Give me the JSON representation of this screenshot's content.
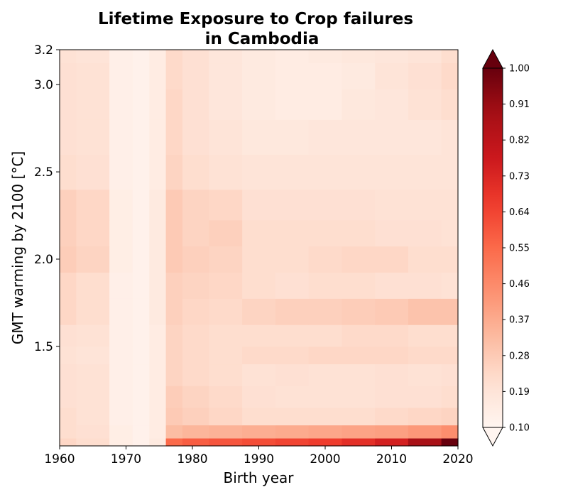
{
  "chart_data": {
    "type": "heatmap",
    "title_line1": "Lifetime Exposure to Crop failures",
    "title_line2": "in Cambodia",
    "xlabel": "Birth year",
    "ylabel": "GMT warming by 2100 [°C]",
    "xlim": [
      1960,
      2020
    ],
    "ylim": [
      0.93,
      3.2
    ],
    "x_ticks": [
      "1960",
      "1970",
      "1980",
      "1990",
      "2000",
      "2010",
      "2020"
    ],
    "y_ticks": [
      "1.5",
      "2.0",
      "2.5",
      "3.0",
      "3.2"
    ],
    "y_tick_values": [
      1.5,
      2.0,
      2.5,
      3.0,
      3.2
    ],
    "colormap": "Reds",
    "colorbar": {
      "min": 0.1,
      "max": 1.0,
      "extend": "both",
      "tick_labels": [
        "0.10",
        "0.19",
        "0.28",
        "0.37",
        "0.46",
        "0.55",
        "0.64",
        "0.73",
        "0.82",
        "0.91",
        "1.00"
      ]
    },
    "x": [
      1960,
      1965,
      1970,
      1972,
      1975,
      1977,
      1980,
      1985,
      1990,
      1995,
      2000,
      2005,
      2010,
      2015,
      2020
    ],
    "y": [
      0.95,
      1.0,
      1.1,
      1.2,
      1.35,
      1.45,
      1.55,
      1.7,
      1.85,
      2.0,
      2.15,
      2.3,
      2.5,
      2.7,
      2.9,
      3.05,
      3.2
    ],
    "z": [
      [
        0.24,
        0.22,
        0.14,
        0.12,
        0.16,
        0.55,
        0.58,
        0.6,
        0.62,
        0.64,
        0.66,
        0.7,
        0.75,
        0.88,
        1.0
      ],
      [
        0.22,
        0.21,
        0.14,
        0.12,
        0.15,
        0.32,
        0.34,
        0.35,
        0.36,
        0.37,
        0.38,
        0.39,
        0.4,
        0.42,
        0.45
      ],
      [
        0.22,
        0.2,
        0.13,
        0.12,
        0.15,
        0.28,
        0.26,
        0.24,
        0.22,
        0.22,
        0.22,
        0.22,
        0.23,
        0.24,
        0.25
      ],
      [
        0.21,
        0.2,
        0.13,
        0.12,
        0.15,
        0.27,
        0.25,
        0.23,
        0.21,
        0.2,
        0.2,
        0.2,
        0.21,
        0.21,
        0.22
      ],
      [
        0.21,
        0.2,
        0.13,
        0.12,
        0.15,
        0.25,
        0.23,
        0.22,
        0.2,
        0.21,
        0.2,
        0.2,
        0.21,
        0.2,
        0.21
      ],
      [
        0.2,
        0.19,
        0.13,
        0.12,
        0.15,
        0.25,
        0.23,
        0.22,
        0.23,
        0.23,
        0.24,
        0.24,
        0.24,
        0.23,
        0.23
      ],
      [
        0.21,
        0.2,
        0.13,
        0.12,
        0.15,
        0.25,
        0.23,
        0.22,
        0.22,
        0.22,
        0.22,
        0.23,
        0.23,
        0.22,
        0.22
      ],
      [
        0.24,
        0.22,
        0.13,
        0.12,
        0.16,
        0.26,
        0.24,
        0.23,
        0.25,
        0.26,
        0.26,
        0.27,
        0.28,
        0.3,
        0.3
      ],
      [
        0.24,
        0.22,
        0.13,
        0.12,
        0.16,
        0.26,
        0.25,
        0.24,
        0.22,
        0.21,
        0.22,
        0.22,
        0.21,
        0.21,
        0.2
      ],
      [
        0.27,
        0.25,
        0.14,
        0.12,
        0.16,
        0.28,
        0.26,
        0.25,
        0.22,
        0.22,
        0.23,
        0.24,
        0.24,
        0.22,
        0.22
      ],
      [
        0.26,
        0.24,
        0.14,
        0.12,
        0.16,
        0.28,
        0.25,
        0.26,
        0.22,
        0.22,
        0.22,
        0.22,
        0.21,
        0.21,
        0.2
      ],
      [
        0.26,
        0.24,
        0.14,
        0.12,
        0.16,
        0.28,
        0.25,
        0.24,
        0.21,
        0.21,
        0.21,
        0.21,
        0.2,
        0.2,
        0.2
      ],
      [
        0.22,
        0.21,
        0.13,
        0.12,
        0.15,
        0.25,
        0.22,
        0.2,
        0.19,
        0.19,
        0.19,
        0.19,
        0.19,
        0.19,
        0.19
      ],
      [
        0.21,
        0.2,
        0.13,
        0.12,
        0.15,
        0.24,
        0.21,
        0.19,
        0.17,
        0.17,
        0.18,
        0.18,
        0.18,
        0.18,
        0.19
      ],
      [
        0.21,
        0.2,
        0.13,
        0.12,
        0.15,
        0.24,
        0.21,
        0.18,
        0.16,
        0.15,
        0.15,
        0.17,
        0.18,
        0.2,
        0.22
      ],
      [
        0.21,
        0.2,
        0.13,
        0.12,
        0.15,
        0.23,
        0.21,
        0.18,
        0.16,
        0.15,
        0.15,
        0.16,
        0.19,
        0.21,
        0.23
      ],
      [
        0.2,
        0.19,
        0.13,
        0.12,
        0.15,
        0.23,
        0.21,
        0.18,
        0.16,
        0.15,
        0.16,
        0.17,
        0.18,
        0.19,
        0.22
      ]
    ]
  }
}
